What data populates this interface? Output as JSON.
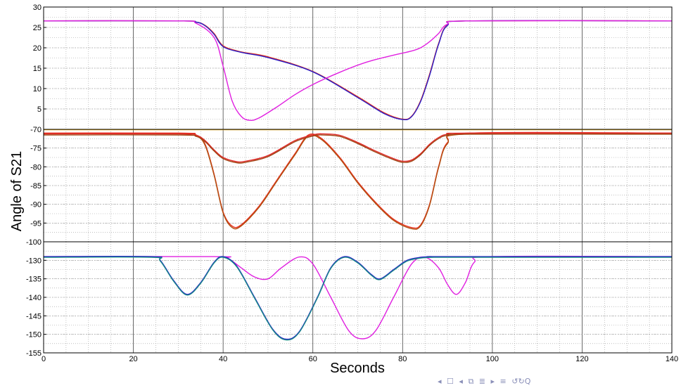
{
  "chart_data": {
    "type": "line",
    "xlabel": "Seconds",
    "ylabel": "Angle of S21",
    "xlim": [
      0,
      140
    ],
    "xticks": [
      "0",
      "20",
      "40",
      "60",
      "80",
      "100",
      "120",
      "140"
    ],
    "grid": true,
    "panels": [
      {
        "name": "top",
        "ylim": [
          0,
          30
        ],
        "ytick_values": [
          0,
          5,
          10,
          15,
          20,
          25,
          30
        ],
        "yticks": [
          "",
          "5",
          "10",
          "15",
          "20",
          "25",
          "30"
        ],
        "series": [
          {
            "color": "#e8341c",
            "x": [
              0,
              30,
              34,
              36,
              38,
              40,
              44,
              50,
              60,
              70,
              76,
              80,
              82,
              84,
              86,
              88,
              90,
              95,
              140
            ],
            "y": [
              26.6,
              26.6,
              26.3,
              25.5,
              23.5,
              20.5,
              19.0,
              17.8,
              14.2,
              8.0,
              4.0,
              2.5,
              3.2,
              7,
              13.5,
              21,
              25.6,
              26.6,
              26.6
            ]
          },
          {
            "color": "#2a1ec8",
            "x": [
              0,
              30,
              34,
              36,
              38,
              40,
              44,
              50,
              60,
              70,
              76,
              80,
              82,
              84,
              86,
              88,
              90,
              95,
              140
            ],
            "y": [
              26.6,
              26.6,
              26.3,
              25.4,
              23.3,
              20.3,
              18.9,
              17.6,
              14.1,
              7.8,
              3.8,
              2.4,
              3.1,
              6.8,
              13.2,
              20.8,
              25.5,
              26.6,
              26.6
            ]
          },
          {
            "color": "#e020e0",
            "x": [
              0,
              30,
              34,
              38,
              40,
              42,
              44,
              46,
              48,
              52,
              56,
              60,
              66,
              72,
              78,
              82,
              84,
              86,
              88,
              90,
              95,
              140
            ],
            "y": [
              26.6,
              26.6,
              26.0,
              22.5,
              15.5,
              7.0,
              3.2,
              2.2,
              2.8,
              5.5,
              8.5,
              11.0,
              14.0,
              16.5,
              18.2,
              19.2,
              20.0,
              21.5,
              23.5,
              25.8,
              26.6,
              26.6
            ]
          }
        ]
      },
      {
        "name": "middle",
        "ylim": [
          -100,
          -70
        ],
        "ytick_values": [
          -100,
          -95,
          -90,
          -85,
          -80,
          -75,
          -70
        ],
        "yticks": [
          "-100",
          "-95",
          "-90",
          "-85",
          "-80",
          "-75",
          "-70"
        ],
        "series": [
          {
            "color": "#e8b020",
            "x": [
              0,
              140
            ],
            "y": [
              -70.1,
              -70.1
            ]
          },
          {
            "color": "#e83020",
            "x": [
              0,
              30,
              34,
              36,
              38,
              40,
              42,
              44,
              48,
              52,
              56,
              59,
              62,
              66,
              70,
              74,
              78,
              82,
              84,
              86,
              88,
              90,
              95,
              140
            ],
            "y": [
              -71,
              -71,
              -71.5,
              -74,
              -82,
              -92,
              -95.8,
              -95.5,
              -90.5,
              -83.5,
              -76.5,
              -71.5,
              -72.5,
              -77.5,
              -84,
              -89.5,
              -94,
              -96.2,
              -95.5,
              -90,
              -80,
              -73.5,
              -71,
              -71
            ]
          },
          {
            "color": "#b05010",
            "x": [
              0,
              30,
              34,
              36,
              38,
              40,
              42,
              44,
              48,
              52,
              56,
              59,
              62,
              66,
              70,
              74,
              78,
              82,
              84,
              86,
              88,
              90,
              95,
              140
            ],
            "y": [
              -71.2,
              -71.2,
              -71.8,
              -74.3,
              -82.3,
              -92.3,
              -96.2,
              -95.8,
              -90.8,
              -83.8,
              -76.8,
              -71.8,
              -72.8,
              -77.8,
              -84.3,
              -89.8,
              -94.3,
              -96.5,
              -95.8,
              -90.3,
              -80.3,
              -73.8,
              -71.2,
              -71.2
            ]
          },
          {
            "color": "#e02828",
            "x": [
              0,
              30,
              34,
              36,
              38,
              40,
              43,
              45,
              50,
              56,
              60,
              62,
              66,
              70,
              74,
              78,
              80,
              82,
              84,
              86,
              88,
              90,
              95,
              140
            ],
            "y": [
              -71.2,
              -71.2,
              -71.6,
              -73,
              -75.5,
              -77.5,
              -78.6,
              -78.5,
              -77,
              -73,
              -71.5,
              -71.2,
              -71.6,
              -73.5,
              -75.8,
              -77.8,
              -78.5,
              -78.2,
              -76.5,
              -74,
              -72.2,
              -71.3,
              -71,
              -71
            ]
          },
          {
            "color": "#a04414",
            "x": [
              0,
              30,
              34,
              36,
              38,
              40,
              43,
              45,
              50,
              56,
              60,
              62,
              66,
              70,
              74,
              78,
              80,
              82,
              84,
              86,
              88,
              90,
              95,
              140
            ],
            "y": [
              -71.5,
              -71.5,
              -71.9,
              -73.3,
              -75.8,
              -77.8,
              -78.9,
              -78.8,
              -77.3,
              -73.3,
              -71.8,
              -71.5,
              -71.9,
              -73.8,
              -76.1,
              -78.1,
              -78.8,
              -78.5,
              -76.8,
              -74.3,
              -72.5,
              -71.6,
              -71.3,
              -71.3
            ]
          }
        ]
      },
      {
        "name": "bottom",
        "ylim": [
          -155,
          -125
        ],
        "ytick_values": [
          -155,
          -150,
          -145,
          -140,
          -135,
          -130,
          -125
        ],
        "yticks": [
          "-155",
          "-150",
          "-145",
          "-140",
          "-135",
          "-130",
          ""
        ],
        "series": [
          {
            "color": "#e020e0",
            "x": [
              0,
              38,
              41,
              44,
              47,
              50,
              53,
              57,
              60,
              64,
              68,
              71,
              74,
              78,
              82,
              85,
              88,
              90,
              92,
              94,
              96,
              100,
              140
            ],
            "y": [
              -129,
              -129,
              -129.5,
              -132,
              -134.5,
              -135,
              -132,
              -129.1,
              -131,
              -140,
              -149,
              -151.2,
              -149,
              -140,
              -131,
              -129.2,
              -132,
              -136.5,
              -139.2,
              -136,
              -130.5,
              -129,
              -129
            ]
          },
          {
            "color": "#2a1ec8",
            "x": [
              0,
              24,
              26,
              29,
              32,
              35,
              38,
              40,
              43,
              47,
              51,
              54,
              57,
              61,
              64,
              67,
              70,
              73,
              75,
              78,
              81,
              84,
              87,
              90,
              140
            ],
            "y": [
              -129,
              -129,
              -130,
              -135.5,
              -139.2,
              -136,
              -130.5,
              -129,
              -131.5,
              -140,
              -148.5,
              -151.3,
              -149.2,
              -140,
              -132,
              -129,
              -130.5,
              -133.8,
              -135,
              -132.5,
              -130,
              -129.2,
              -129,
              -129,
              -129
            ]
          },
          {
            "color": "#1a8a8a",
            "x": [
              0,
              24,
              26,
              29,
              32,
              35,
              38,
              40,
              43,
              47,
              51,
              54,
              57,
              61,
              64,
              67,
              70,
              73,
              75,
              78,
              81,
              84,
              87,
              90,
              140
            ],
            "y": [
              -129.2,
              -129.2,
              -130.2,
              -135.7,
              -139.4,
              -136.2,
              -130.7,
              -129.2,
              -131.7,
              -140.2,
              -148.7,
              -151.5,
              -149.4,
              -140.2,
              -132.2,
              -129.2,
              -130.7,
              -134,
              -135.2,
              -132.7,
              -130.2,
              -129.4,
              -129.2,
              -129.2,
              -129.2
            ]
          }
        ]
      }
    ]
  },
  "nav": {
    "first": "◂",
    "frame": "☐",
    "prev": "◂",
    "section": "⧉",
    "subsection": "≣",
    "next": "▸",
    "last": "≡",
    "search": "↺↻Q"
  }
}
